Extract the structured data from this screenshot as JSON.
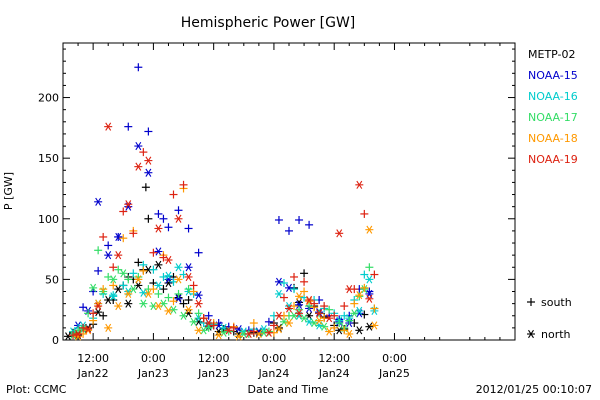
{
  "chart_data": {
    "type": "scatter",
    "title": "Hemispheric Power [GW]",
    "xlabel": "Date and Time",
    "ylabel": "P [GW]",
    "x_unit": "hours since 2012-01-21 00:00 UT",
    "xlim": [
      6,
      96
    ],
    "ylim": [
      0,
      245
    ],
    "yticks": [
      0,
      50,
      100,
      150,
      200
    ],
    "xticks": [
      {
        "x": 12,
        "time": "12:00",
        "date": "Jan22"
      },
      {
        "x": 24,
        "time": "0:00",
        "date": "Jan23"
      },
      {
        "x": 36,
        "time": "12:00",
        "date": "Jan23"
      },
      {
        "x": 48,
        "time": "0:00",
        "date": "Jan24"
      },
      {
        "x": 60,
        "time": "12:00",
        "date": "Jan24"
      },
      {
        "x": 72,
        "time": "0:00",
        "date": "Jan25"
      }
    ],
    "marker_legend": [
      {
        "symbol": "+",
        "label": "south"
      },
      {
        "symbol": "*",
        "label": "north"
      }
    ],
    "series": [
      {
        "name": "METP-02",
        "color": "#000000",
        "south": [
          [
            8,
            6
          ],
          [
            10,
            9
          ],
          [
            12,
            13
          ],
          [
            14,
            20
          ],
          [
            16,
            33
          ],
          [
            18,
            45
          ],
          [
            19,
            52
          ],
          [
            20,
            50
          ],
          [
            21,
            64
          ],
          [
            22,
            58
          ],
          [
            22.5,
            126
          ],
          [
            23,
            100
          ],
          [
            24,
            47
          ],
          [
            26,
            42
          ],
          [
            28,
            52
          ],
          [
            30,
            30
          ],
          [
            31,
            33
          ],
          [
            34,
            18
          ],
          [
            36,
            12
          ],
          [
            38,
            9
          ],
          [
            40,
            7
          ],
          [
            44,
            6
          ],
          [
            48,
            14
          ],
          [
            52,
            43
          ],
          [
            54,
            55
          ],
          [
            56,
            28
          ],
          [
            58,
            19
          ],
          [
            60,
            12
          ],
          [
            62,
            9
          ],
          [
            64,
            14
          ],
          [
            66,
            21
          ]
        ],
        "north": [
          [
            7,
            3
          ],
          [
            9,
            4
          ],
          [
            11,
            10
          ],
          [
            13,
            23
          ],
          [
            15,
            33
          ],
          [
            17,
            42
          ],
          [
            19,
            30
          ],
          [
            21,
            45
          ],
          [
            23,
            58
          ],
          [
            25,
            62
          ],
          [
            27,
            47
          ],
          [
            29,
            35
          ],
          [
            31,
            22
          ],
          [
            33,
            15
          ],
          [
            35,
            11
          ],
          [
            37,
            7
          ],
          [
            41,
            5
          ],
          [
            45,
            6
          ],
          [
            49,
            10
          ],
          [
            53,
            31
          ],
          [
            55,
            20
          ],
          [
            57,
            22
          ],
          [
            61,
            8
          ],
          [
            65,
            8
          ],
          [
            67,
            11
          ]
        ]
      },
      {
        "name": "NOAA-15",
        "color": "#0000cc",
        "south": [
          [
            10,
            27
          ],
          [
            12,
            40
          ],
          [
            13,
            57
          ],
          [
            15,
            78
          ],
          [
            17,
            85
          ],
          [
            19,
            176
          ],
          [
            21,
            225
          ],
          [
            23,
            172
          ],
          [
            25,
            104
          ],
          [
            26,
            100
          ],
          [
            27,
            93
          ],
          [
            29,
            107
          ],
          [
            31,
            92
          ],
          [
            33,
            72
          ],
          [
            35,
            20
          ],
          [
            37,
            14
          ],
          [
            39,
            11
          ],
          [
            43,
            8
          ],
          [
            47,
            15
          ],
          [
            49,
            99
          ],
          [
            51,
            90
          ],
          [
            53,
            99
          ],
          [
            55,
            95
          ],
          [
            57,
            33
          ],
          [
            59,
            20
          ],
          [
            61,
            17
          ],
          [
            63,
            20
          ],
          [
            65,
            42
          ],
          [
            67,
            40
          ]
        ],
        "north": [
          [
            9,
            12
          ],
          [
            11,
            24
          ],
          [
            13,
            114
          ],
          [
            15,
            70
          ],
          [
            17,
            85
          ],
          [
            19,
            110
          ],
          [
            21,
            160
          ],
          [
            23,
            138
          ],
          [
            25,
            73
          ],
          [
            27,
            50
          ],
          [
            29,
            34
          ],
          [
            31,
            60
          ],
          [
            33,
            37
          ],
          [
            35,
            14
          ],
          [
            37,
            12
          ],
          [
            41,
            9
          ],
          [
            45,
            7
          ],
          [
            49,
            48
          ],
          [
            51,
            43
          ],
          [
            53,
            29
          ],
          [
            55,
            26
          ],
          [
            57,
            23
          ],
          [
            61,
            15
          ],
          [
            63,
            14
          ],
          [
            65,
            22
          ],
          [
            67,
            38
          ]
        ]
      },
      {
        "name": "NOAA-16",
        "color": "#00cccc",
        "south": [
          [
            9,
            10
          ],
          [
            12,
            18
          ],
          [
            14,
            38
          ],
          [
            16,
            37
          ],
          [
            18,
            45
          ],
          [
            20,
            55
          ],
          [
            22,
            62
          ],
          [
            24,
            58
          ],
          [
            26,
            52
          ],
          [
            28,
            48
          ],
          [
            30,
            54
          ],
          [
            32,
            38
          ],
          [
            34,
            14
          ],
          [
            36,
            13
          ],
          [
            40,
            10
          ],
          [
            44,
            9
          ],
          [
            48,
            20
          ],
          [
            50,
            47
          ],
          [
            52,
            42
          ],
          [
            54,
            35
          ],
          [
            56,
            33
          ],
          [
            58,
            26
          ],
          [
            60,
            22
          ],
          [
            62,
            20
          ],
          [
            64,
            33
          ],
          [
            66,
            54
          ],
          [
            68,
            26
          ]
        ],
        "north": [
          [
            8,
            7
          ],
          [
            10,
            12
          ],
          [
            13,
            30
          ],
          [
            16,
            36
          ],
          [
            19,
            40
          ],
          [
            22,
            39
          ],
          [
            25,
            45
          ],
          [
            27,
            53
          ],
          [
            29,
            60
          ],
          [
            31,
            40
          ],
          [
            33,
            18
          ],
          [
            35,
            12
          ],
          [
            38,
            10
          ],
          [
            42,
            7
          ],
          [
            46,
            9
          ],
          [
            49,
            38
          ],
          [
            51,
            28
          ],
          [
            53,
            20
          ],
          [
            55,
            15
          ],
          [
            57,
            12
          ],
          [
            61,
            16
          ],
          [
            63,
            18
          ],
          [
            65,
            24
          ],
          [
            67,
            50
          ],
          [
            68,
            24
          ]
        ]
      },
      {
        "name": "NOAA-17",
        "color": "#33dd66",
        "south": [
          [
            9,
            8
          ],
          [
            11,
            22
          ],
          [
            13,
            74
          ],
          [
            15,
            52
          ],
          [
            17,
            58
          ],
          [
            19,
            50
          ],
          [
            21,
            52
          ],
          [
            23,
            42
          ],
          [
            25,
            38
          ],
          [
            27,
            35
          ],
          [
            29,
            38
          ],
          [
            31,
            42
          ],
          [
            33,
            22
          ],
          [
            35,
            10
          ],
          [
            39,
            7
          ],
          [
            43,
            5
          ],
          [
            47,
            7
          ],
          [
            51,
            20
          ],
          [
            53,
            25
          ],
          [
            55,
            28
          ],
          [
            57,
            22
          ],
          [
            59,
            25
          ],
          [
            61,
            14
          ],
          [
            63,
            16
          ],
          [
            65,
            36
          ],
          [
            67,
            60
          ]
        ],
        "north": [
          [
            8,
            4
          ],
          [
            10,
            9
          ],
          [
            12,
            43
          ],
          [
            14,
            40
          ],
          [
            16,
            50
          ],
          [
            18,
            55
          ],
          [
            20,
            42
          ],
          [
            22,
            30
          ],
          [
            24,
            28
          ],
          [
            26,
            30
          ],
          [
            28,
            25
          ],
          [
            30,
            20
          ],
          [
            32,
            15
          ],
          [
            34,
            8
          ],
          [
            38,
            6
          ],
          [
            42,
            5
          ],
          [
            46,
            6
          ],
          [
            50,
            15
          ],
          [
            52,
            20
          ],
          [
            54,
            18
          ],
          [
            56,
            14
          ],
          [
            58,
            11
          ],
          [
            62,
            10
          ],
          [
            64,
            22
          ],
          [
            66,
            42
          ]
        ]
      },
      {
        "name": "NOAA-18",
        "color": "#ff9900",
        "south": [
          [
            10,
            5
          ],
          [
            12,
            16
          ],
          [
            14,
            42
          ],
          [
            16,
            45
          ],
          [
            18,
            84
          ],
          [
            20,
            90
          ],
          [
            22,
            57
          ],
          [
            24,
            42
          ],
          [
            26,
            70
          ],
          [
            28,
            32
          ],
          [
            30,
            125
          ],
          [
            32,
            40
          ],
          [
            34,
            18
          ],
          [
            36,
            14
          ],
          [
            40,
            11
          ],
          [
            44,
            14
          ],
          [
            48,
            6
          ],
          [
            50,
            20
          ],
          [
            52,
            28
          ],
          [
            54,
            40
          ],
          [
            56,
            27
          ],
          [
            58,
            18
          ],
          [
            60,
            10
          ],
          [
            62,
            8
          ],
          [
            64,
            30
          ],
          [
            66,
            43
          ],
          [
            68,
            26
          ]
        ],
        "north": [
          [
            9,
            3
          ],
          [
            11,
            8
          ],
          [
            13,
            30
          ],
          [
            15,
            10
          ],
          [
            17,
            28
          ],
          [
            19,
            38
          ],
          [
            21,
            50
          ],
          [
            23,
            38
          ],
          [
            25,
            28
          ],
          [
            27,
            24
          ],
          [
            29,
            50
          ],
          [
            31,
            25
          ],
          [
            33,
            8
          ],
          [
            37,
            4
          ],
          [
            41,
            3
          ],
          [
            45,
            5
          ],
          [
            49,
            9
          ],
          [
            51,
            14
          ],
          [
            53,
            36
          ],
          [
            55,
            32
          ],
          [
            57,
            16
          ],
          [
            59,
            7
          ],
          [
            63,
            5
          ],
          [
            65,
            37
          ],
          [
            67,
            91
          ],
          [
            68,
            12
          ]
        ]
      },
      {
        "name": "NOAA-19",
        "color": "#dd2211",
        "south": [
          [
            8,
            4
          ],
          [
            10,
            10
          ],
          [
            12,
            22
          ],
          [
            14,
            85
          ],
          [
            16,
            60
          ],
          [
            18,
            106
          ],
          [
            20,
            88
          ],
          [
            22,
            155
          ],
          [
            24,
            72
          ],
          [
            26,
            68
          ],
          [
            28,
            120
          ],
          [
            30,
            128
          ],
          [
            32,
            45
          ],
          [
            34,
            18
          ],
          [
            36,
            12
          ],
          [
            40,
            10
          ],
          [
            44,
            7
          ],
          [
            48,
            12
          ],
          [
            50,
            35
          ],
          [
            52,
            52
          ],
          [
            54,
            48
          ],
          [
            56,
            30
          ],
          [
            58,
            28
          ],
          [
            60,
            20
          ],
          [
            62,
            28
          ],
          [
            64,
            42
          ],
          [
            66,
            104
          ],
          [
            68,
            54
          ]
        ],
        "north": [
          [
            9,
            5
          ],
          [
            11,
            9
          ],
          [
            13,
            28
          ],
          [
            15,
            176
          ],
          [
            17,
            70
          ],
          [
            19,
            112
          ],
          [
            21,
            143
          ],
          [
            23,
            148
          ],
          [
            25,
            92
          ],
          [
            27,
            66
          ],
          [
            29,
            100
          ],
          [
            31,
            52
          ],
          [
            33,
            30
          ],
          [
            35,
            14
          ],
          [
            39,
            8
          ],
          [
            43,
            5
          ],
          [
            47,
            6
          ],
          [
            49,
            20
          ],
          [
            51,
            26
          ],
          [
            53,
            22
          ],
          [
            55,
            33
          ],
          [
            57,
            22
          ],
          [
            59,
            18
          ],
          [
            61,
            88
          ],
          [
            63,
            42
          ],
          [
            65,
            128
          ],
          [
            67,
            34
          ]
        ]
      }
    ]
  },
  "footer": {
    "credit": "Plot: CCMC",
    "timestamp": "2012/01/25 00:10:07"
  }
}
